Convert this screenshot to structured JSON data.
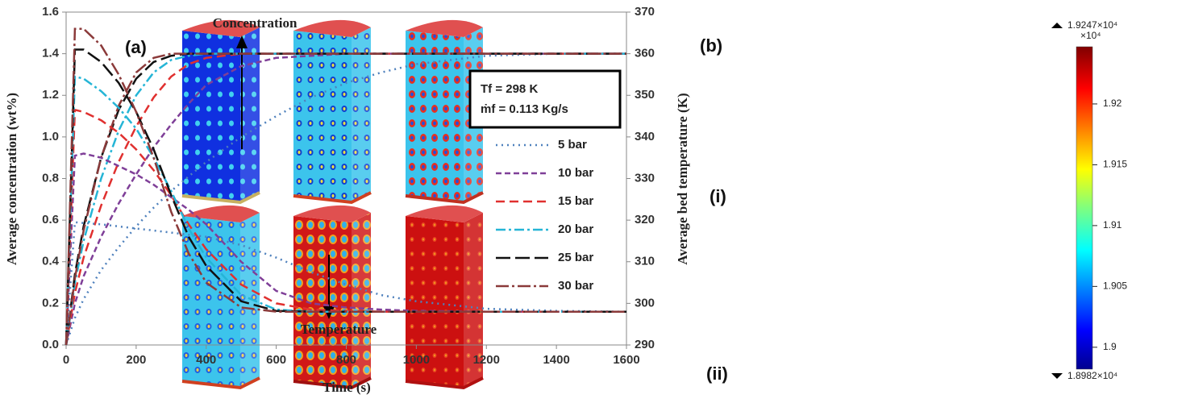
{
  "chart_data": {
    "type": "line",
    "title": "(a)",
    "x_label": "Time (s)",
    "y_label": "Average concentration  (wt%)",
    "y2_label": "Average bed temperature  (K)",
    "annotations": [
      "Concentration",
      "Temperature"
    ],
    "conditions": [
      "Tf = 298 K",
      "ṁf = 0.113 Kg/s"
    ],
    "x": [
      0,
      25,
      50,
      100,
      150,
      200,
      250,
      300,
      350,
      400,
      500,
      600,
      700,
      800,
      900,
      1000,
      1200,
      1400,
      1600
    ],
    "xlim": [
      0,
      1600
    ],
    "xticks": [
      0,
      200,
      400,
      600,
      800,
      1000,
      1200,
      1400,
      1600
    ],
    "ylim": [
      0,
      1.6
    ],
    "yticks": [
      {
        "value": 0,
        "label": "0.0"
      },
      0.2,
      0.4,
      0.6,
      0.8,
      {
        "value": 1,
        "label": "1.0"
      },
      1.2,
      1.4,
      1.6
    ],
    "y2lim": [
      290,
      370
    ],
    "y2ticks": [
      290,
      300,
      310,
      320,
      330,
      340,
      350,
      360,
      370
    ],
    "series": [
      {
        "name": "5 bar",
        "color": "#4f81bd",
        "values": [
          0,
          0.13,
          0.22,
          0.36,
          0.47,
          0.57,
          0.66,
          0.74,
          0.81,
          0.88,
          1.0,
          1.1,
          1.19,
          1.26,
          1.31,
          1.35,
          1.39,
          1.4,
          1.4
        ]
      },
      {
        "name": "10 bar",
        "color": "#7f3f98",
        "values": [
          0,
          0.2,
          0.33,
          0.52,
          0.68,
          0.82,
          0.95,
          1.06,
          1.16,
          1.25,
          1.34,
          1.38,
          1.39,
          1.4,
          1.4,
          1.4,
          1.4,
          1.4,
          1.4
        ]
      },
      {
        "name": "15 bar",
        "color": "#e0302f",
        "values": [
          0,
          0.25,
          0.42,
          0.67,
          0.88,
          1.05,
          1.19,
          1.29,
          1.35,
          1.38,
          1.4,
          1.4,
          1.4,
          1.4,
          1.4,
          1.4,
          1.4,
          1.4,
          1.4
        ]
      },
      {
        "name": "20 bar",
        "color": "#25b5d6",
        "values": [
          0,
          0.3,
          0.5,
          0.8,
          1.03,
          1.2,
          1.31,
          1.37,
          1.39,
          1.4,
          1.4,
          1.4,
          1.4,
          1.4,
          1.4,
          1.4,
          1.4,
          1.4,
          1.4
        ]
      },
      {
        "name": "25 bar",
        "color": "#111111",
        "values": [
          0,
          0.34,
          0.57,
          0.9,
          1.13,
          1.28,
          1.36,
          1.39,
          1.4,
          1.4,
          1.4,
          1.4,
          1.4,
          1.4,
          1.4,
          1.4,
          1.4,
          1.4,
          1.4
        ]
      },
      {
        "name": "30 bar",
        "color": "#8b3a3a",
        "values": [
          0,
          0.32,
          0.55,
          0.9,
          1.15,
          1.31,
          1.38,
          1.4,
          1.4,
          1.4,
          1.4,
          1.4,
          1.4,
          1.4,
          1.4,
          1.4,
          1.4,
          1.4,
          1.4
        ]
      },
      {
        "axis": "y2",
        "color": "#4f81bd",
        "values": [
          290,
          319.5,
          319.3,
          319,
          318.5,
          318,
          317.5,
          317,
          316.5,
          316,
          314,
          311,
          307.5,
          304.5,
          302,
          300.5,
          298.7,
          298.2,
          298
        ]
      },
      {
        "axis": "y2",
        "color": "#7f3f98",
        "values": [
          290,
          335.5,
          336,
          335,
          333,
          331,
          328.5,
          325.5,
          322.5,
          319,
          310,
          303,
          300,
          299,
          298.5,
          298.2,
          298,
          298,
          298
        ]
      },
      {
        "axis": "y2",
        "color": "#e0302f",
        "values": [
          290,
          346.5,
          346,
          344,
          341,
          337,
          332,
          326,
          319,
          313,
          304.5,
          300,
          298.5,
          298.2,
          298,
          298,
          298,
          298,
          298
        ]
      },
      {
        "axis": "y2",
        "color": "#25b5d6",
        "values": [
          290,
          354.5,
          354,
          351,
          347,
          342,
          335,
          327,
          318,
          311,
          302,
          298.5,
          298,
          298,
          298,
          298,
          298,
          298,
          298
        ]
      },
      {
        "axis": "y2",
        "color": "#111111",
        "values": [
          290,
          361,
          361,
          358,
          353,
          346,
          337,
          326,
          316,
          309,
          300.5,
          298.2,
          298,
          298,
          298,
          298,
          298,
          298,
          298
        ]
      },
      {
        "axis": "y2",
        "color": "#8b3a3a",
        "values": [
          290,
          366,
          366,
          362,
          355,
          346,
          335,
          322,
          312,
          305,
          299,
          298,
          298,
          298,
          298,
          298,
          298,
          298,
          298
        ]
      }
    ]
  },
  "panel_b": {
    "label": "(b)",
    "rows": [
      "(i)",
      "(ii)"
    ],
    "colorbar": {
      "max_label": "1.9247×10⁴",
      "multiplier": "×10⁴",
      "min_label": "1.8982×10⁴",
      "range": [
        1.8982,
        1.9247
      ],
      "ticks": [
        1.9,
        1.905,
        1.91,
        1.915,
        1.92
      ]
    }
  }
}
